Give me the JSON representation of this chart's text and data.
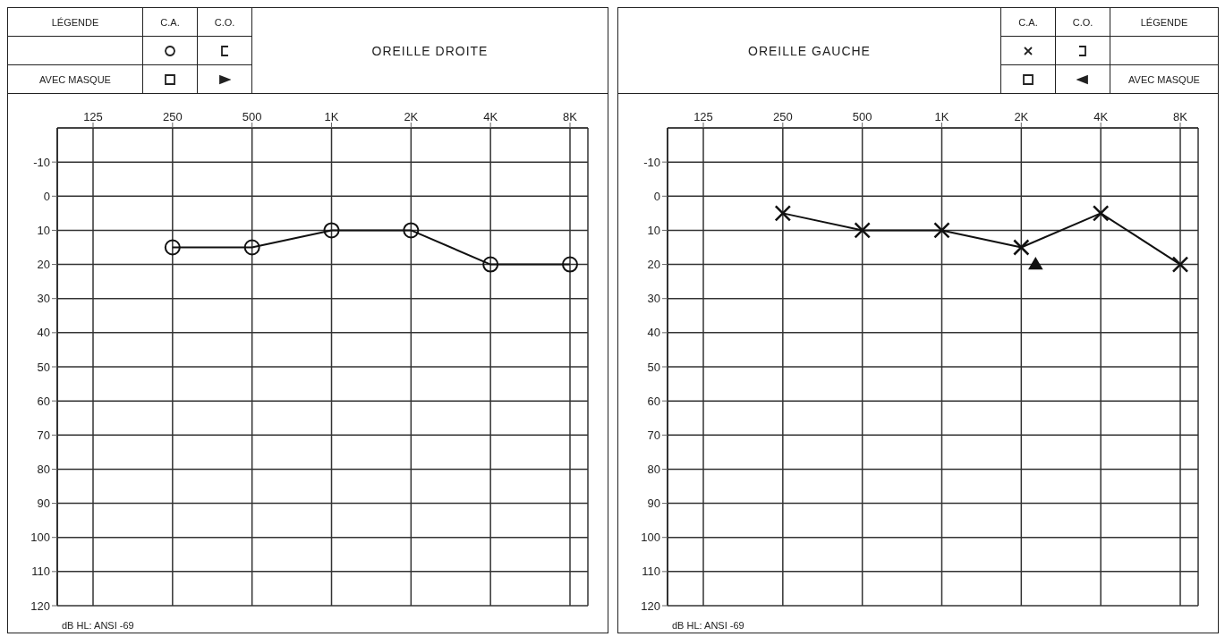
{
  "chart_data": [
    {
      "type": "line",
      "title": "OREILLE DROITE",
      "categories": [
        "125",
        "250",
        "500",
        "1K",
        "2K",
        "4K",
        "8K"
      ],
      "series": [
        {
          "color": "#111111",
          "marker": "circle",
          "values": [
            null,
            15,
            15,
            10,
            10,
            20,
            20
          ]
        }
      ],
      "ylim": [
        120,
        -20
      ],
      "yticks": [
        -10,
        0,
        10,
        20,
        30,
        40,
        50,
        60,
        70,
        80,
        90,
        100,
        110,
        120
      ],
      "grid": true,
      "annotations": [
        "LÉGENDE",
        "C.A.",
        "C.O.",
        "AVEC MASQUE",
        "dB HL: ANSI -69"
      ]
    },
    {
      "type": "line",
      "title": "OREILLE GAUCHE",
      "categories": [
        "125",
        "250",
        "500",
        "1K",
        "2K",
        "4K",
        "8K"
      ],
      "series": [
        {
          "color": "#111111",
          "marker": "cross",
          "values": [
            null,
            5,
            10,
            10,
            15,
            5,
            20
          ]
        },
        {
          "type": "scatter",
          "color": "#111111",
          "marker": "triangle",
          "values": [
            null,
            null,
            null,
            null,
            20,
            null,
            null
          ]
        }
      ],
      "ylim": [
        120,
        -20
      ],
      "yticks": [
        -10,
        0,
        10,
        20,
        30,
        40,
        50,
        60,
        70,
        80,
        90,
        100,
        110,
        120
      ],
      "grid": true,
      "annotations": [
        "C.A.",
        "C.O.",
        "LÉGENDE",
        "AVEC MASQUE",
        "dB HL: ANSI -69"
      ]
    }
  ]
}
